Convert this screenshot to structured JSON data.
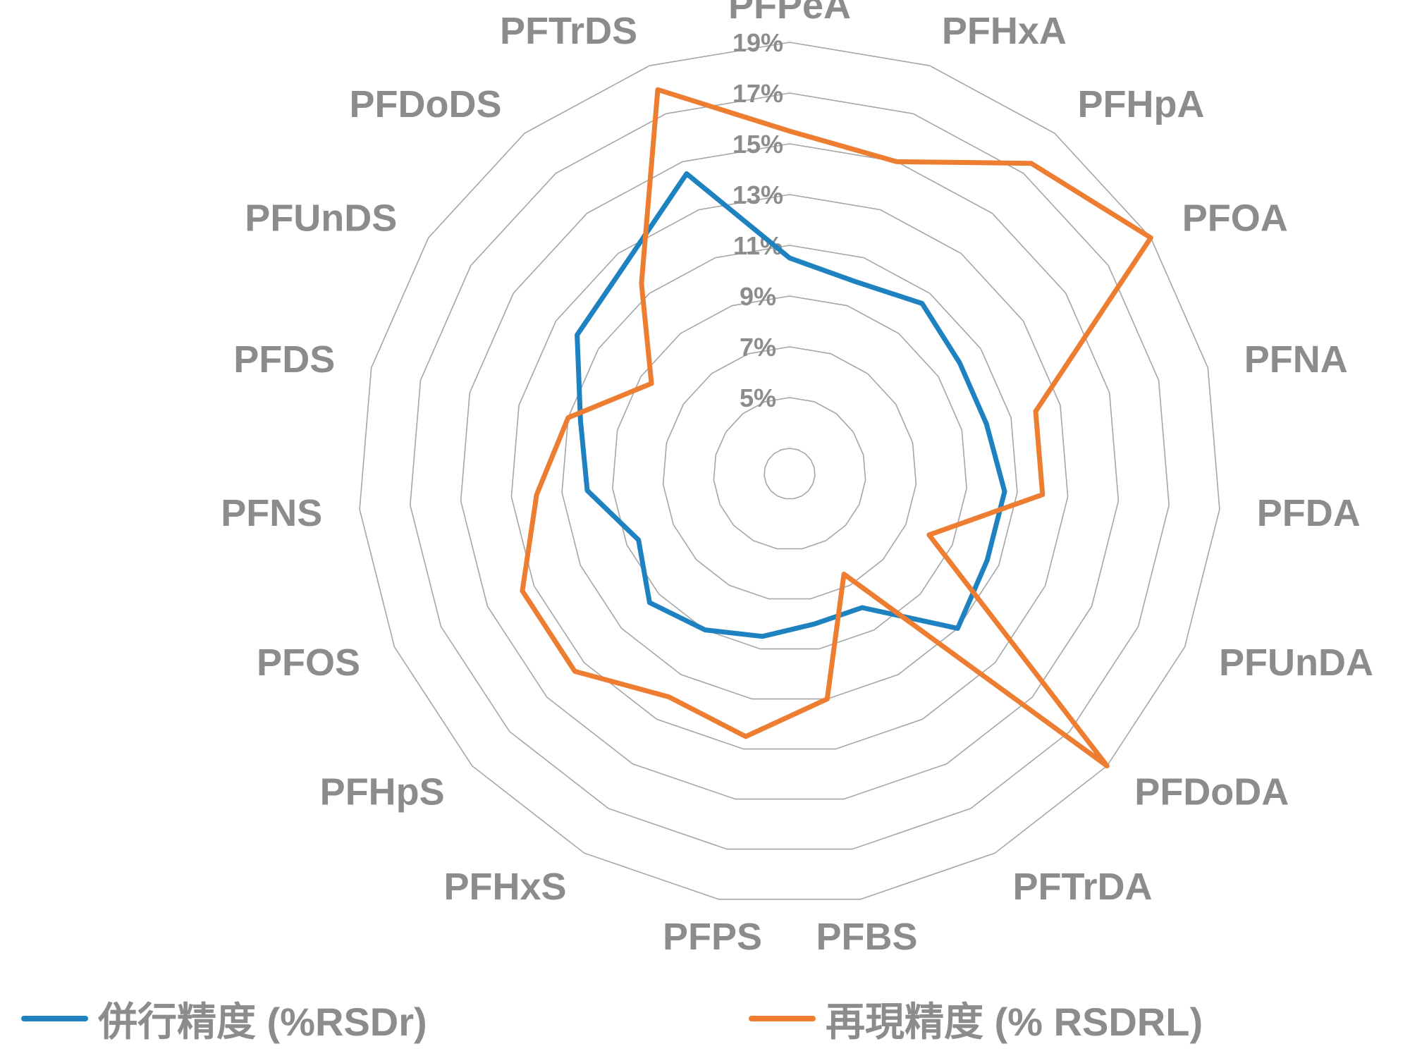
{
  "chart_data": {
    "type": "radar",
    "title": "",
    "categories": [
      "PFPeA",
      "PFHxA",
      "PFHpA",
      "PFOA",
      "PFNA",
      "PFDA",
      "PFUnDA",
      "PFDoDA",
      "PFTrDA",
      "PFBS",
      "PFPS",
      "PFHxS",
      "PFHpS",
      "PFOS",
      "PFNS",
      "PFDS",
      "PFUnDS",
      "PFDoDS",
      "PFTrDS"
    ],
    "radial_ticks": [
      "5%",
      "7%",
      "9%",
      "11%",
      "13%",
      "15%",
      "17%",
      "19%"
    ],
    "radial_range": [
      3,
      19
    ],
    "grid": true,
    "legend_position": "bottom",
    "series": [
      {
        "name": "併行精度 (%RSDr)",
        "color": "#1f82c0",
        "values": [
          10.5,
          10.0,
          10.5,
          10.0,
          10.0,
          10.5,
          10.5,
          11.0,
          8.0,
          8.0,
          8.5,
          9.0,
          9.5,
          8.5,
          10.0,
          10.5,
          12.0,
          12.5,
          14.5
        ]
      },
      {
        "name": "再現精度 (% RSDRL)",
        "color": "#ed7d31",
        "values": [
          15.5,
          15.0,
          17.5,
          19.0,
          12.0,
          12.0,
          8.0,
          19.0,
          6.5,
          11.0,
          12.5,
          12.0,
          13.5,
          13.5,
          12.0,
          11.0,
          8.5,
          11.5,
          18.0
        ]
      }
    ]
  }
}
